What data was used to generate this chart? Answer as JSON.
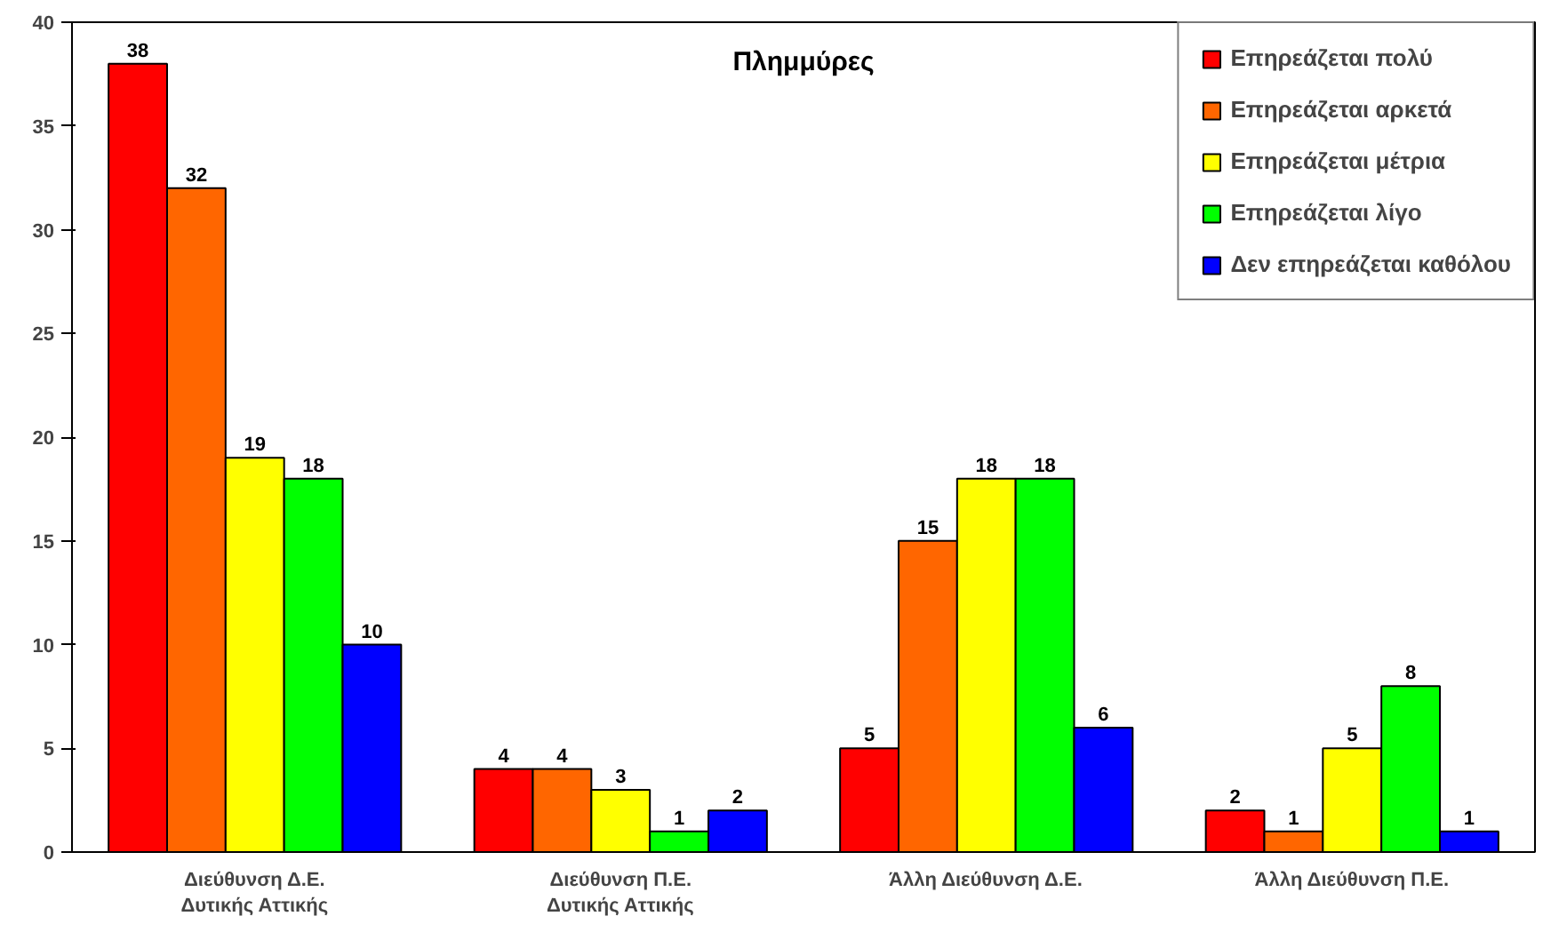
{
  "chart_data": {
    "type": "bar",
    "title": "Πλημμύρες",
    "categories": [
      "Διεύθυνση Δ.Ε. Δυτικής Αττικής",
      "Διεύθυνση Π.Ε. Δυτικής Αττικής",
      "Άλλη Διεύθυνση Δ.Ε.",
      "Άλλη Διεύθυνση Π.Ε."
    ],
    "series": [
      {
        "name": "Επηρεάζεται πολύ",
        "color": "#ff0000",
        "values": [
          38,
          4,
          5,
          2
        ]
      },
      {
        "name": "Επηρεάζεται αρκετά",
        "color": "#ff6600",
        "values": [
          32,
          4,
          15,
          1
        ]
      },
      {
        "name": "Επηρεάζεται μέτρια",
        "color": "#ffff00",
        "values": [
          19,
          3,
          18,
          5
        ]
      },
      {
        "name": "Επηρεάζεται λίγο",
        "color": "#00ff00",
        "values": [
          18,
          1,
          18,
          8
        ]
      },
      {
        "name": "Δεν επηρεάζεται καθόλου",
        "color": "#0000ff",
        "values": [
          10,
          2,
          6,
          1
        ]
      }
    ],
    "ylim": [
      0,
      40
    ],
    "yticks": [
      0,
      5,
      10,
      15,
      20,
      25,
      30,
      35,
      40
    ],
    "grid": false,
    "legend": "top right",
    "data_labels": true
  }
}
